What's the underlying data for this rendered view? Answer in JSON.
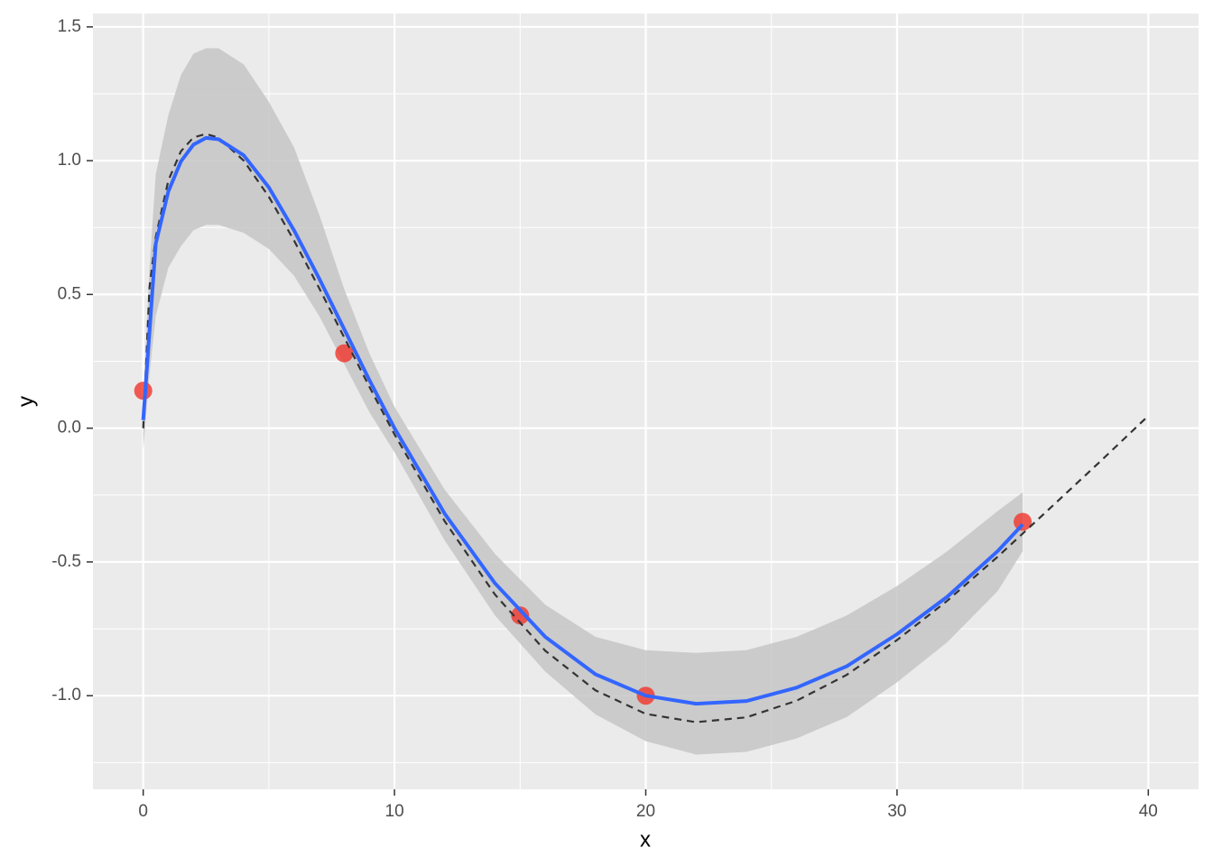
{
  "chart_data": {
    "type": "line",
    "x_label": "x",
    "y_label": "y",
    "xlim": [
      -2,
      42
    ],
    "ylim": [
      -1.35,
      1.55
    ],
    "xticks": [
      0,
      10,
      20,
      30,
      40
    ],
    "yticks": [
      {
        "value": -1,
        "label": "-1.0"
      },
      -0.5,
      {
        "value": 0,
        "label": "0.0"
      },
      0.5,
      {
        "value": 1,
        "label": "1.0"
      },
      1.5
    ],
    "x_minor_ticks": [
      5,
      15,
      25,
      35
    ],
    "y_minor_ticks": [
      -1.25,
      -0.75,
      -0.25,
      0.25,
      0.75,
      1.25
    ],
    "grid": true,
    "truth": {
      "color": "#333333",
      "x": [
        0,
        0.25,
        0.5,
        1,
        1.5,
        2,
        2.5,
        3,
        4,
        5,
        6,
        7,
        8,
        9,
        10,
        12,
        14,
        16,
        18,
        20,
        22,
        24,
        26,
        28,
        30,
        32,
        34,
        36,
        38,
        40
      ],
      "values": [
        0,
        0.527,
        0.715,
        0.926,
        1.035,
        1.087,
        1.1,
        1.086,
        1.0,
        0.865,
        0.702,
        0.524,
        0.339,
        0.155,
        -0.023,
        -0.348,
        -0.622,
        -0.832,
        -0.98,
        -1.068,
        -1.099,
        -1.081,
        -1.019,
        -0.922,
        -0.792,
        -0.645,
        -0.481,
        -0.307,
        -0.132,
        0.046
      ]
    },
    "fit": {
      "color": "#3366ff",
      "band_color": "#c6c6c6",
      "x": [
        0,
        0.25,
        0.5,
        1,
        1.5,
        2,
        2.5,
        3,
        4,
        5,
        6,
        7,
        8,
        9,
        10,
        12,
        14,
        16,
        18,
        20,
        22,
        24,
        26,
        28,
        30,
        32,
        34,
        35
      ],
      "values": [
        0.03,
        0.36,
        0.69,
        0.885,
        0.997,
        1.06,
        1.085,
        1.08,
        1.02,
        0.9,
        0.74,
        0.56,
        0.37,
        0.18,
        0.0,
        -0.32,
        -0.58,
        -0.78,
        -0.92,
        -1.0,
        -1.03,
        -1.02,
        -0.97,
        -0.89,
        -0.77,
        -0.63,
        -0.46,
        -0.36
      ],
      "upper": [
        0.1,
        0.6,
        0.95,
        1.17,
        1.32,
        1.4,
        1.42,
        1.42,
        1.36,
        1.22,
        1.05,
        0.8,
        0.52,
        0.28,
        0.08,
        -0.23,
        -0.47,
        -0.66,
        -0.78,
        -0.83,
        -0.84,
        -0.83,
        -0.78,
        -0.7,
        -0.59,
        -0.46,
        -0.31,
        -0.24
      ],
      "lower": [
        -0.08,
        0.2,
        0.42,
        0.6,
        0.68,
        0.74,
        0.76,
        0.76,
        0.73,
        0.67,
        0.57,
        0.42,
        0.24,
        0.06,
        -0.09,
        -0.42,
        -0.7,
        -0.91,
        -1.07,
        -1.17,
        -1.22,
        -1.21,
        -1.16,
        -1.08,
        -0.95,
        -0.8,
        -0.61,
        -0.46
      ]
    },
    "points": {
      "color": "#f0342a",
      "x": [
        0,
        8,
        15,
        20,
        35
      ],
      "values": [
        0.14,
        0.28,
        -0.7,
        -1.0,
        -0.35
      ]
    }
  }
}
